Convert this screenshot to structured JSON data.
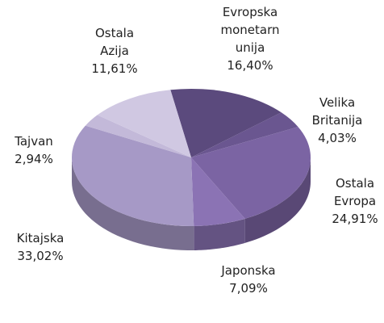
{
  "chart_data": {
    "type": "pie3d",
    "categories": [
      "Evropska monetarn unija",
      "Velika Britanija",
      "Ostala Evropa",
      "Japonska",
      "Kitajska",
      "Tajvan",
      "Ostala Azija"
    ],
    "values": [
      16.4,
      4.03,
      24.91,
      7.09,
      33.02,
      2.94,
      11.61
    ],
    "value_labels": [
      "16,40%",
      "4,03%",
      "24,91%",
      "7,09%",
      "33,02%",
      "2,94%",
      "11,61%"
    ],
    "colors": [
      "#5b4a7d",
      "#6a5690",
      "#7b64a3",
      "#8b73b4",
      "#a699c6",
      "#c3b9d9",
      "#d0c8e2"
    ]
  }
}
